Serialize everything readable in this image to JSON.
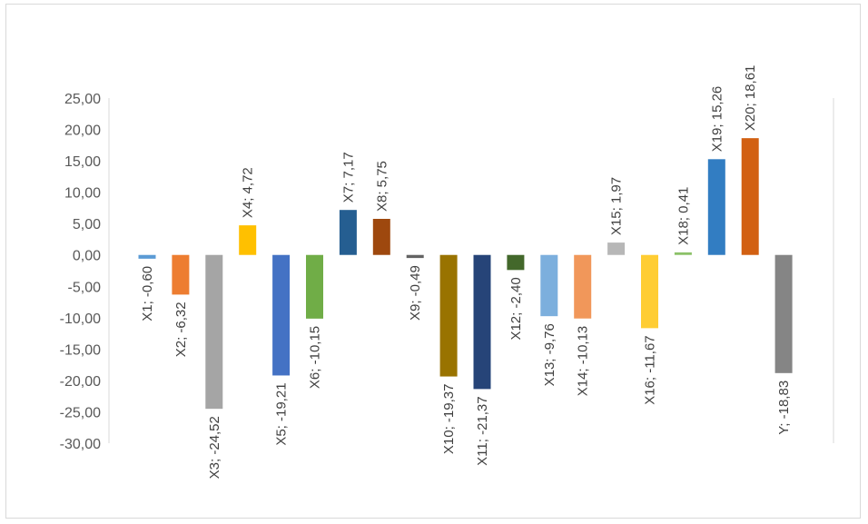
{
  "chart_data": {
    "type": "bar",
    "title": "",
    "xlabel": "",
    "ylabel": "",
    "ylim": [
      -30,
      25
    ],
    "y_ticks": [
      "25,00",
      "20,00",
      "15,00",
      "10,00",
      "5,00",
      "0,00",
      "-5,00",
      "-10,00",
      "-15,00",
      "-20,00",
      "-25,00",
      "-30,00"
    ],
    "y_tick_values": [
      25,
      20,
      15,
      10,
      5,
      0,
      -5,
      -10,
      -15,
      -20,
      -25,
      -30
    ],
    "grid": false,
    "legend": "none",
    "categories": [
      "X1",
      "X2",
      "X3",
      "X4",
      "X5",
      "X6",
      "X7",
      "X8",
      "X9",
      "X10",
      "X11",
      "X12",
      "X13",
      "X14",
      "X15",
      "X16",
      "X18",
      "X19",
      "X20",
      "Y"
    ],
    "values": [
      -0.6,
      -6.32,
      -24.52,
      4.72,
      -19.21,
      -10.15,
      7.17,
      5.75,
      -0.49,
      -19.37,
      -21.37,
      -2.4,
      -9.76,
      -10.13,
      1.97,
      -11.67,
      0.41,
      15.26,
      18.61,
      -18.83
    ],
    "data_labels": [
      "X1; -0,60",
      "X2; -6,32",
      "X3; -24,52",
      "X4; 4,72",
      "X5; -19,21",
      "X6; -10,15",
      "X7; 7,17",
      "X8; 5,75",
      "X9; -0,49",
      "X10; -19,37",
      "X11; -21,37",
      "X12; -2,40",
      "X13; -9,76",
      "X14; -10,13",
      "X15; 1,97",
      "X16; -11,67",
      "X18; 0,41",
      "X19; 15,26",
      "X20; 18,61",
      "Y; -18,83"
    ],
    "colors": [
      "#5b9bd5",
      "#ed7d31",
      "#a5a5a5",
      "#ffc000",
      "#4472c4",
      "#70ad47",
      "#255e91",
      "#9e480e",
      "#636363",
      "#997300",
      "#264478",
      "#43682b",
      "#7cafdd",
      "#f1975a",
      "#b7b7b7",
      "#ffcd33",
      "#8cc168",
      "#327dc2",
      "#d26012",
      "#858585"
    ]
  }
}
